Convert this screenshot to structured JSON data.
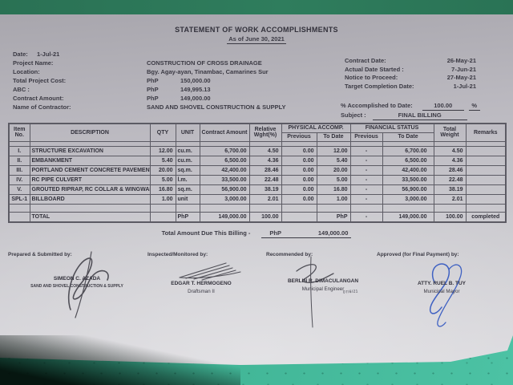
{
  "document": {
    "title": "STATEMENT OF WORK ACCOMPLISHMENTS",
    "subtitle": "As of June 30, 2021"
  },
  "info": {
    "date_label": "Date:",
    "date_value": "1-Jul-21",
    "project_name_label": "Project Name:",
    "project_name_value": "CONSTRUCTION OF CROSS DRAINAGE",
    "location_label": "Location:",
    "location_value": "Bgy. Agay-ayan, Tinambac, Camarines Sur",
    "total_project_cost_label": "Total Project Cost:",
    "total_project_cost_currency": "PhP",
    "total_project_cost_value": "150,000.00",
    "abc_label": "ABC :",
    "abc_currency": "PhP",
    "abc_value": "149,995.13",
    "contract_amount_label": "Contract Amount:",
    "contract_amount_currency": "PhP",
    "contract_amount_value": "149,000.00",
    "contractor_label": "Name of Contractor:",
    "contractor_value": "SAND AND SHOVEL CONSTRUCTION & SUPPLY",
    "contract_date_label": "Contract Date:",
    "contract_date_value": "26-May-21",
    "actual_start_label": "Actual Date Started :",
    "actual_start_value": "7-Jun-21",
    "notice_label": "Notice to Proceed:",
    "notice_value": "27-May-21",
    "target_completion_label": "Target Completion Date:",
    "target_completion_value": "1-Jul-21",
    "accomplished_label": "% Accomplished to Date:",
    "accomplished_value": "100.00",
    "accomplished_unit": "%",
    "subject_label": "Subject :",
    "subject_value": "FINAL BILLING"
  },
  "table": {
    "headers": {
      "item_no": "Item No.",
      "description": "DESCRIPTION",
      "qty": "QTY",
      "unit": "UNIT",
      "contract_amount": "Contract Amount",
      "relative_wght": "Relative Wght(%)",
      "physical": "PHYSICAL ACCOMP.",
      "financial": "FINANCIAL STATUS",
      "previous": "Previous",
      "to_date": "To Date",
      "total_weight": "Total Weight",
      "remarks": "Remarks"
    },
    "rows": [
      {
        "item": "I.",
        "description": "STRUCTURE EXCAVATION",
        "qty": "12.00",
        "unit": "cu.m.",
        "contract_amount": "6,700.00",
        "relative_wght": "4.50",
        "phys_prev": "0.00",
        "phys_todate": "12.00",
        "fin_prev": "-",
        "fin_todate": "6,700.00",
        "total_weight": "4.50",
        "remarks": ""
      },
      {
        "item": "II.",
        "description": "EMBANKMENT",
        "qty": "5.40",
        "unit": "cu.m.",
        "contract_amount": "6,500.00",
        "relative_wght": "4.36",
        "phys_prev": "0.00",
        "phys_todate": "5.40",
        "fin_prev": "-",
        "fin_todate": "6,500.00",
        "total_weight": "4.36",
        "remarks": ""
      },
      {
        "item": "III.",
        "description": "PORTLAND CEMENT CONCRETE PAVEMENT",
        "qty": "20.00",
        "unit": "sq.m.",
        "contract_amount": "42,400.00",
        "relative_wght": "28.46",
        "phys_prev": "0.00",
        "phys_todate": "20.00",
        "fin_prev": "-",
        "fin_todate": "42,400.00",
        "total_weight": "28.46",
        "remarks": ""
      },
      {
        "item": "IV.",
        "description": "RC PIPE CULVERT",
        "qty": "5.00",
        "unit": "l.m.",
        "contract_amount": "33,500.00",
        "relative_wght": "22.48",
        "phys_prev": "0.00",
        "phys_todate": "5.00",
        "fin_prev": "-",
        "fin_todate": "33,500.00",
        "total_weight": "22.48",
        "remarks": ""
      },
      {
        "item": "V.",
        "description": "GROUTED RIPRAP, RC COLLAR & WINGWALL",
        "qty": "16.80",
        "unit": "sq.m.",
        "contract_amount": "56,900.00",
        "relative_wght": "38.19",
        "phys_prev": "0.00",
        "phys_todate": "16.80",
        "fin_prev": "-",
        "fin_todate": "56,900.00",
        "total_weight": "38.19",
        "remarks": ""
      },
      {
        "item": "SPL-1",
        "description": "BILLBOARD",
        "qty": "1.00",
        "unit": "unit",
        "contract_amount": "3,000.00",
        "relative_wght": "2.01",
        "phys_prev": "0.00",
        "phys_todate": "1.00",
        "fin_prev": "-",
        "fin_todate": "3,000.00",
        "total_weight": "2.01",
        "remarks": ""
      }
    ],
    "total_row": {
      "item": "",
      "description": "TOTAL",
      "qty": "",
      "unit": "PhP",
      "contract_amount": "149,000.00",
      "relative_wght": "100.00",
      "phys_prev": "",
      "phys_todate": "PhP",
      "fin_prev": "-",
      "fin_todate": "149,000.00",
      "total_weight": "100.00",
      "remarks": "completed"
    }
  },
  "billing": {
    "label": "Total Amount Due This Billing -",
    "currency": "PhP",
    "amount": "149,000.00"
  },
  "signatures": [
    {
      "role": "Prepared & Submitted by:",
      "name": "SIMEON C. AZADA",
      "title": "SAND AND SHOVEL CONSTRUCTION & SUPPLY"
    },
    {
      "role": "Inspected/Monitored by:",
      "name": "EDGAR T. HERMOGENO",
      "title": "Draftsman II"
    },
    {
      "role": "Recommended by:",
      "name": "BERLIN R. DIMACULANGAN",
      "title": "Municipal Engineer",
      "note": "07/6/21"
    },
    {
      "role": "Approved (for Final Payment) by:",
      "name": "ATTY. RUEL B. TUY",
      "title": "Municipal Mayor"
    }
  ],
  "colors": {
    "backdrop_teal": "#41b596",
    "backdrop_top_green": "#2d7a58",
    "paper_gray": "#c4c3c8",
    "ink": "#3b3a44",
    "signature_blue": "#2f55c0"
  }
}
